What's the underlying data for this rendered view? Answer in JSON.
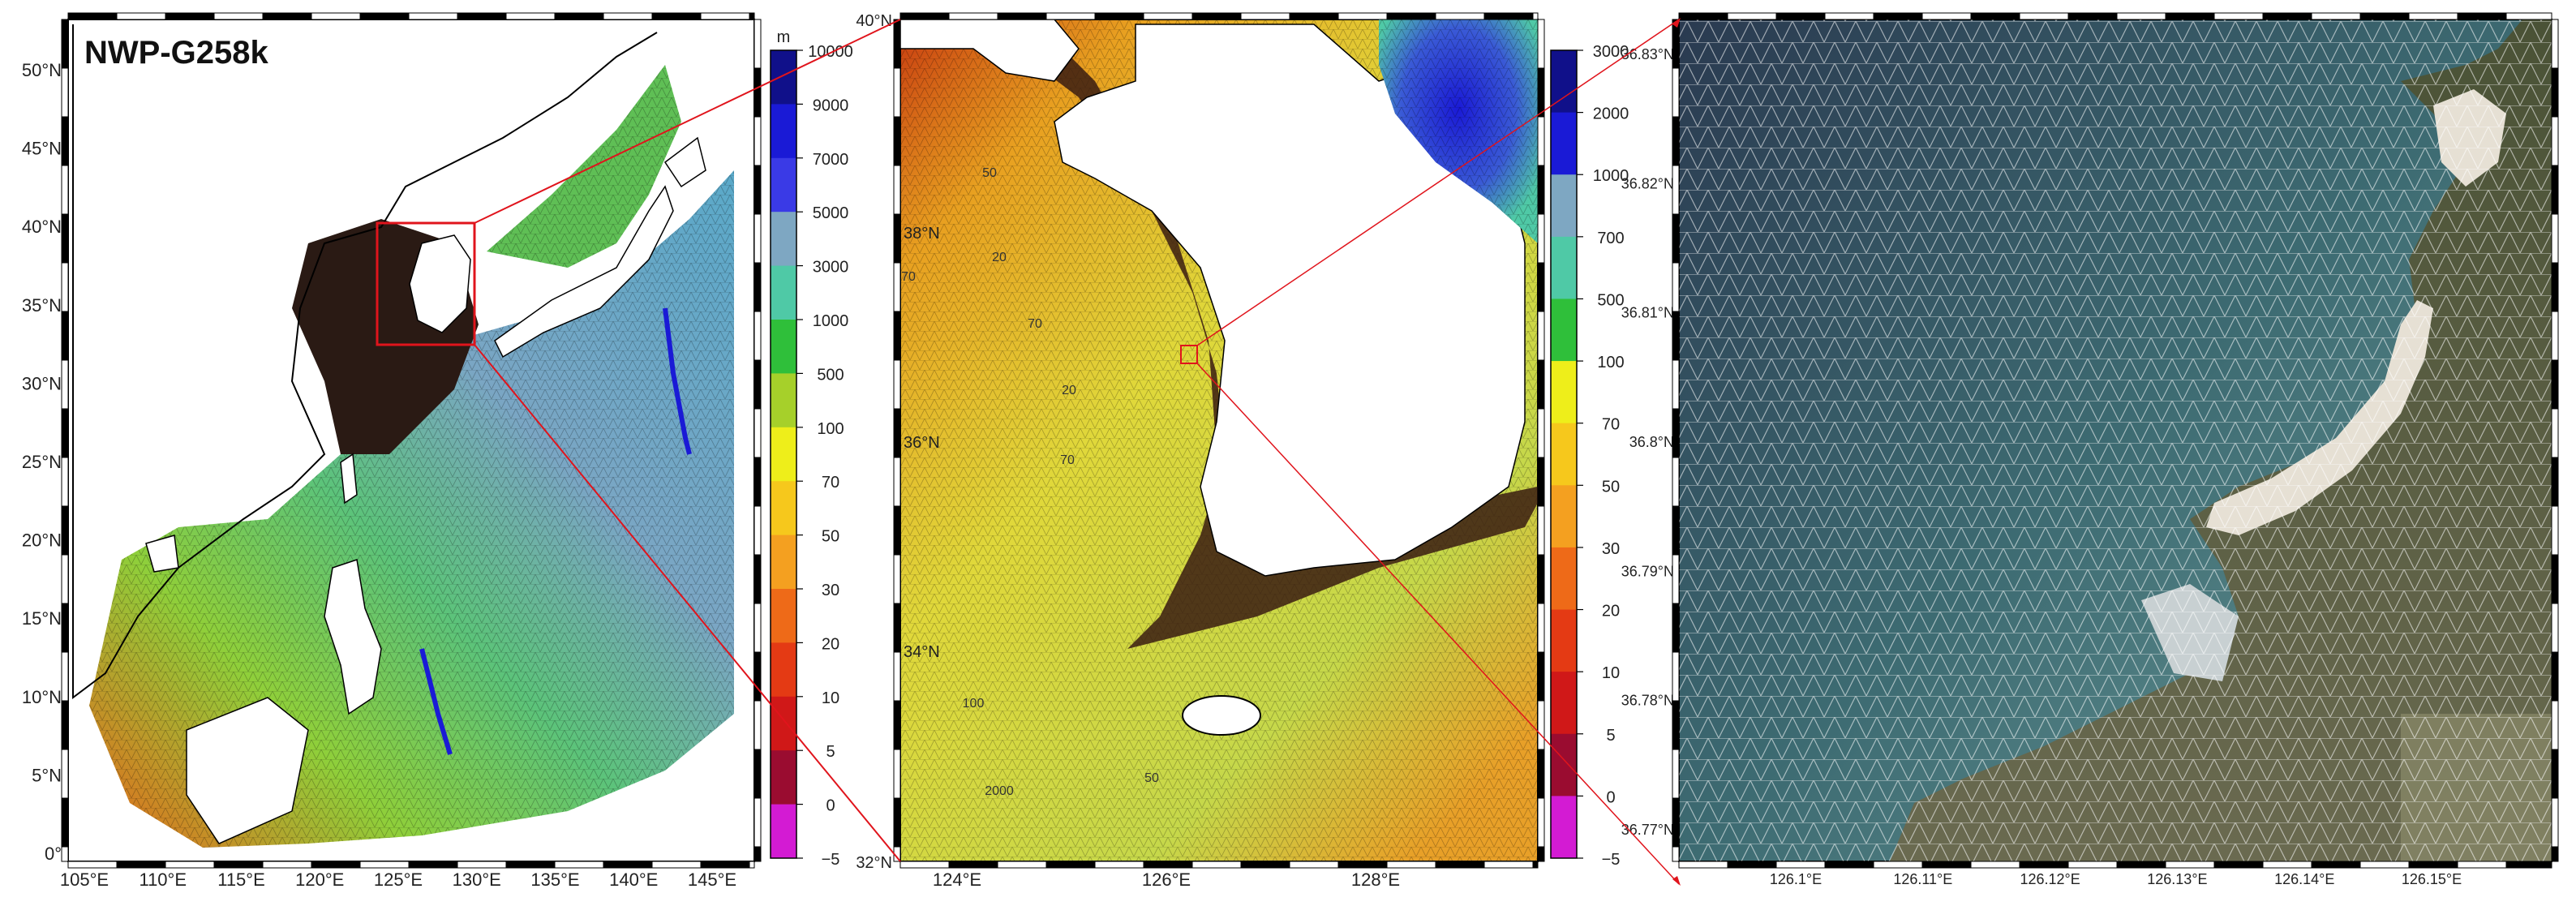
{
  "panel1": {
    "title": "NWP-G258k",
    "lat_labels": [
      "50°N",
      "45°N",
      "40°N",
      "35°N",
      "30°N",
      "25°N",
      "20°N",
      "15°N",
      "10°N",
      "5°N",
      "0°"
    ],
    "lon_labels": [
      "105°E",
      "110°E",
      "115°E",
      "120°E",
      "125°E",
      "130°E",
      "135°E",
      "140°E",
      "145°E"
    ],
    "colorbar": {
      "unit": "m",
      "ticks": [
        "10000",
        "9000",
        "7000",
        "5000",
        "3000",
        "1000",
        "500",
        "100",
        "70",
        "50",
        "30",
        "20",
        "10",
        "5",
        "0",
        "−5"
      ],
      "colors": [
        "#10108a",
        "#1a1ad6",
        "#3a3ae6",
        "#7ea7c2",
        "#4fc9a6",
        "#2fbf3a",
        "#a6d02a",
        "#eeee1a",
        "#f6c81c",
        "#f4a020",
        "#ee6a18",
        "#e43a14",
        "#d01818",
        "#9a0c30",
        "#d31bd3"
      ]
    }
  },
  "panel2": {
    "lat_labels": [
      "40°N",
      "38°N",
      "36°N",
      "34°N",
      "32°N"
    ],
    "lon_labels": [
      "124°E",
      "126°E",
      "128°E"
    ],
    "contour_labels": [
      "50",
      "20",
      "70",
      "70",
      "20",
      "70",
      "100",
      "50",
      "2000"
    ],
    "colorbar": {
      "unit": "",
      "ticks": [
        "3000",
        "2000",
        "1000",
        "700",
        "500",
        "100",
        "70",
        "50",
        "30",
        "20",
        "10",
        "5",
        "0",
        "−5"
      ],
      "colors": [
        "#10108a",
        "#1a1ad6",
        "#7ea7c2",
        "#4fc9a6",
        "#2fbf3a",
        "#eeee1a",
        "#f6c81c",
        "#f4a020",
        "#ee6a18",
        "#e43a14",
        "#d01818",
        "#9a0c30",
        "#d31bd3"
      ]
    }
  },
  "panel3": {
    "lat_labels": [
      "36.83°N",
      "36.82°N",
      "36.81°N",
      "36.8°N",
      "36.79°N",
      "36.78°N",
      "36.77°N"
    ],
    "lon_labels": [
      "126.1°E",
      "126.11°E",
      "126.12°E",
      "126.13°E",
      "126.14°E",
      "126.15°E"
    ]
  }
}
